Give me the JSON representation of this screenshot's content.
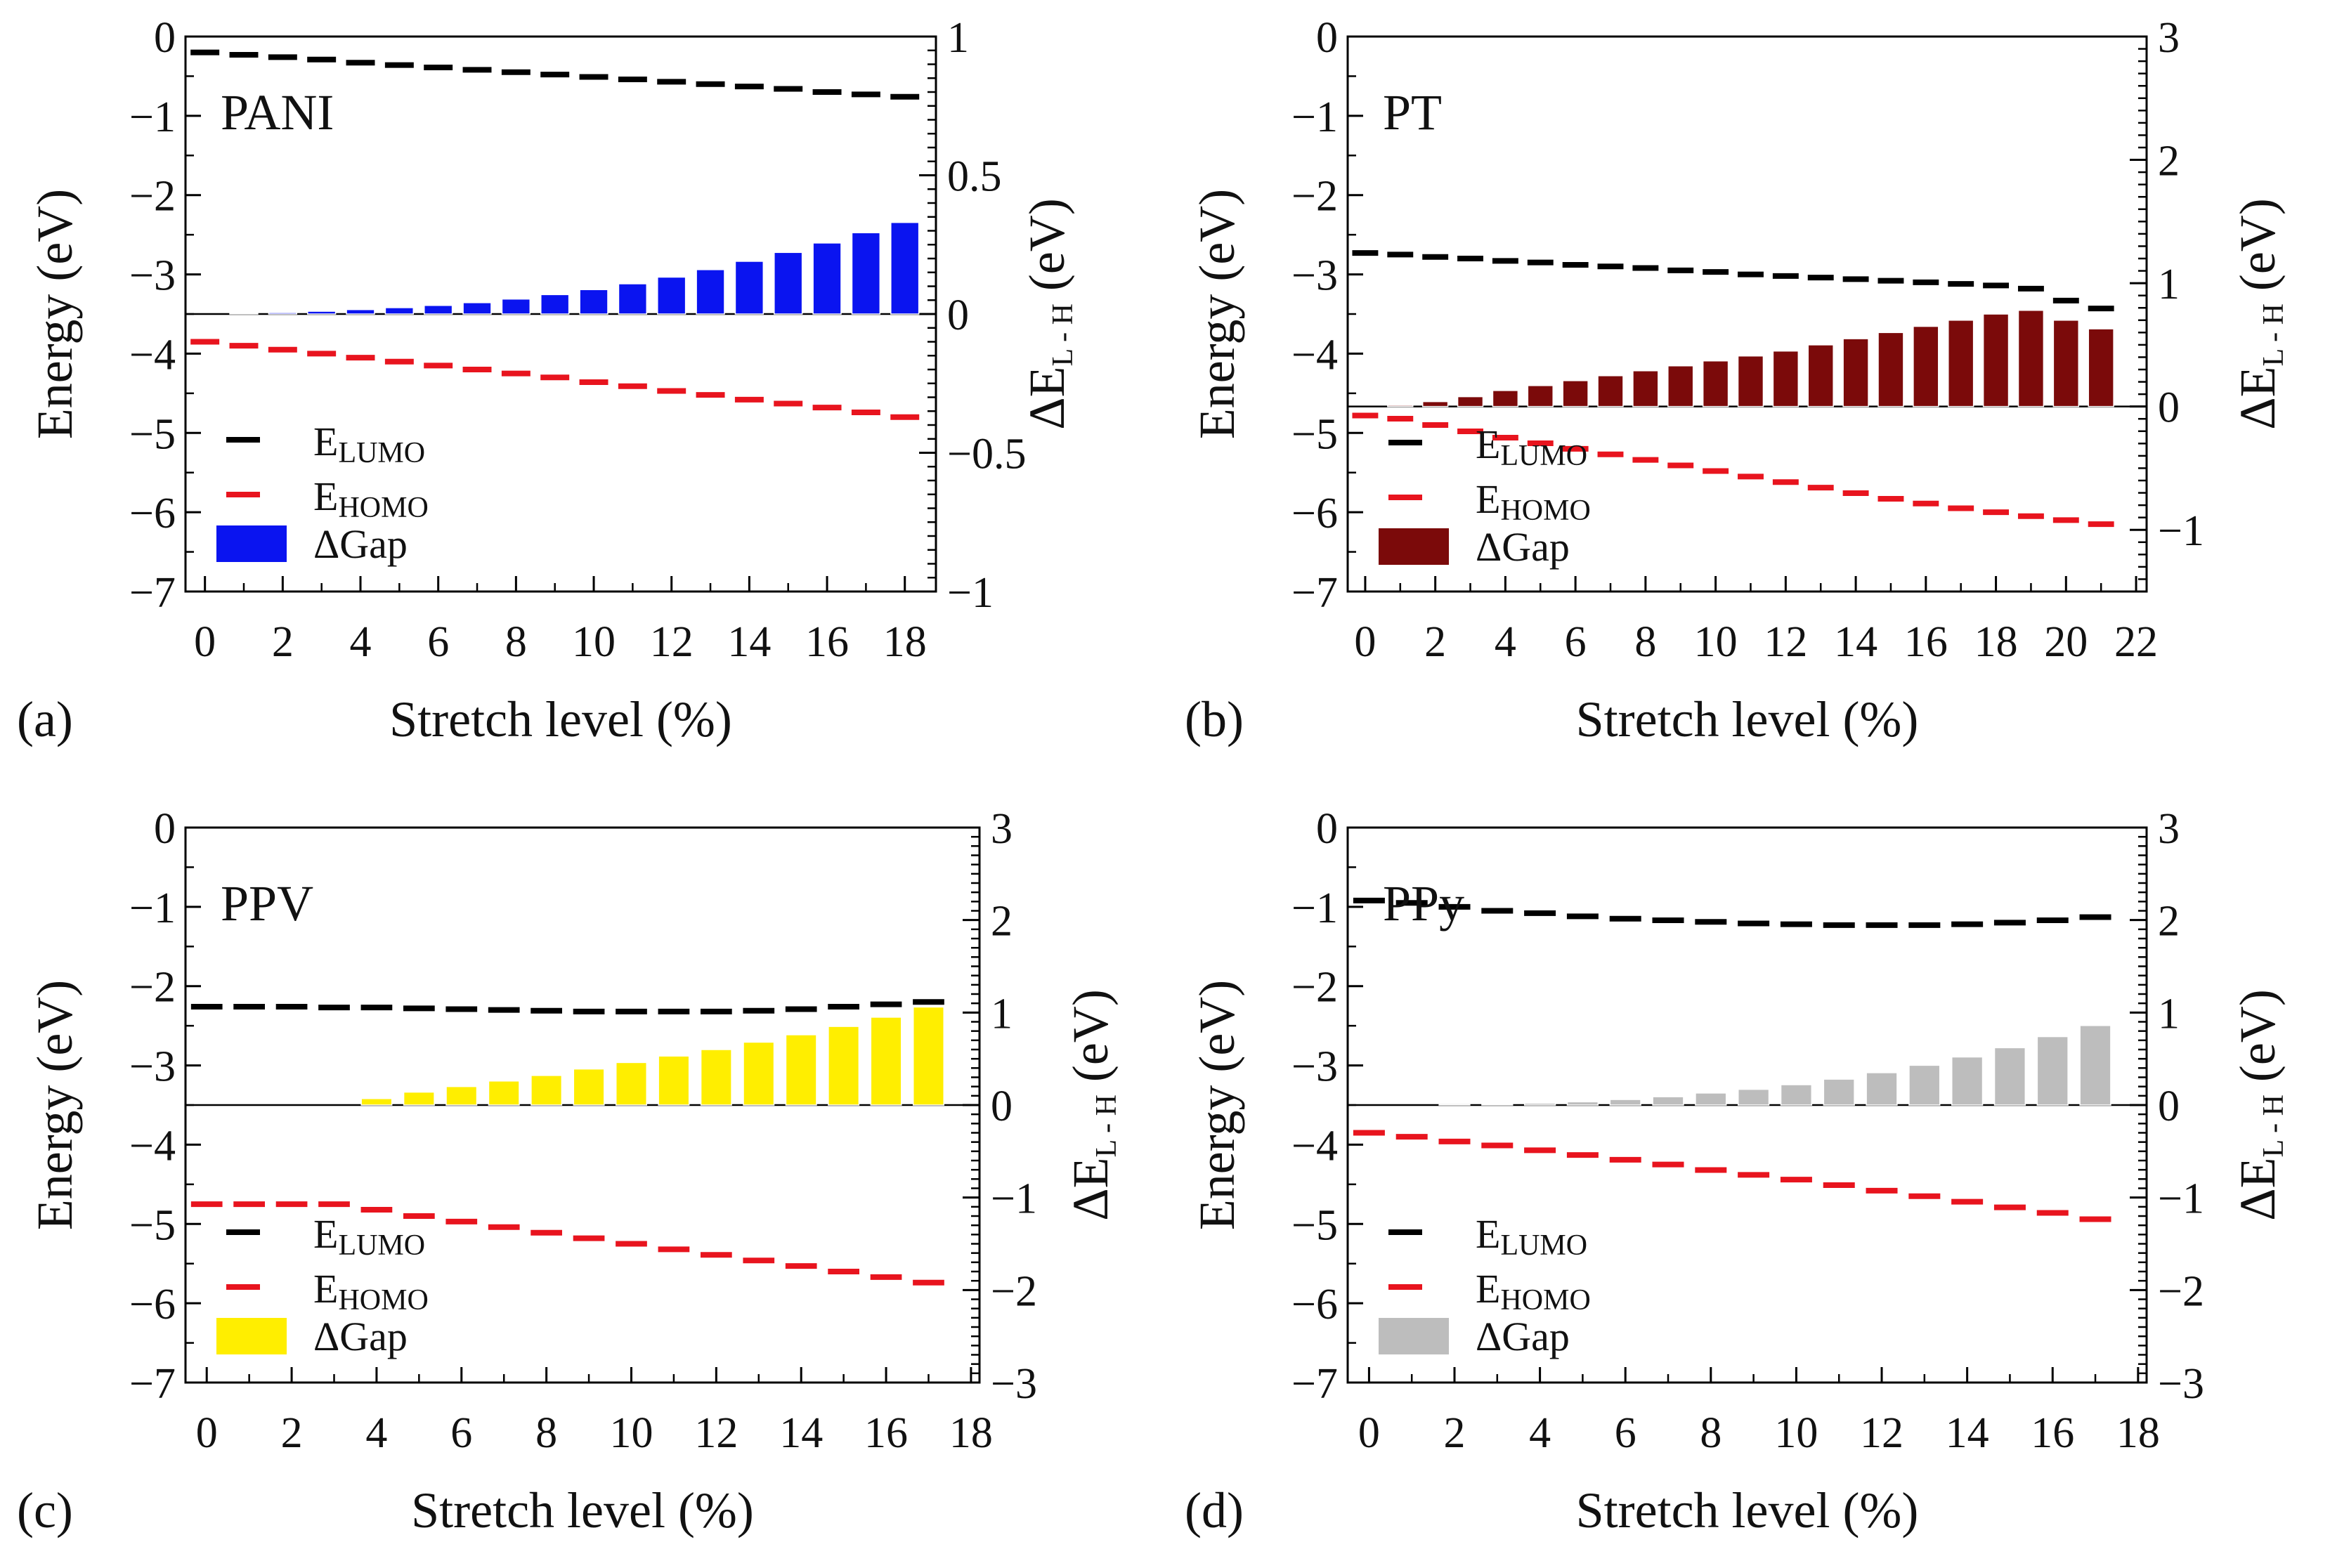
{
  "figure": {
    "legend_labels": {
      "lumo_main": "E",
      "lumo_sub": "LUMO",
      "homo_main": "E",
      "homo_sub": "HOMO",
      "gap": "ΔGap"
    },
    "xlabel": "Stretch level (%)",
    "ylabel_left": "Energy (eV)",
    "ylabel_right_main": "ΔE",
    "ylabel_right_sub": "L - H",
    "ylabel_right_unit": " (eV)"
  },
  "chart_data": [
    {
      "type": "bar",
      "panel": "(a)",
      "title": "PANI",
      "xlabel": "Stretch level (%)",
      "ylabel": "Energy (eV)",
      "y2label": "ΔE L-H (eV)",
      "xlim": [
        -0.5,
        18.8
      ],
      "xticks": [
        0,
        2,
        4,
        6,
        8,
        10,
        12,
        14,
        16,
        18
      ],
      "ylim": [
        -7,
        0
      ],
      "yticks": [
        0,
        -1,
        -2,
        -3,
        -4,
        -5,
        -6,
        -7
      ],
      "y2lim": [
        -1,
        1
      ],
      "y2ticks": [
        1,
        0.5,
        0,
        -0.5,
        -1
      ],
      "y2ticklabels": [
        "1",
        "0.5",
        "0",
        "−0.5",
        "−1"
      ],
      "bar_color": "#0a14f0",
      "x": [
        0,
        1,
        2,
        3,
        4,
        5,
        6,
        7,
        8,
        9,
        10,
        11,
        12,
        13,
        14,
        15,
        16,
        17,
        18
      ],
      "series": [
        {
          "name": "ELUMO",
          "axis": "left",
          "color": "#000000",
          "values": [
            -0.2,
            -0.23,
            -0.26,
            -0.29,
            -0.33,
            -0.36,
            -0.39,
            -0.42,
            -0.45,
            -0.48,
            -0.51,
            -0.54,
            -0.57,
            -0.6,
            -0.63,
            -0.66,
            -0.7,
            -0.73,
            -0.76
          ]
        },
        {
          "name": "EHOMO",
          "axis": "left",
          "color": "#e8141e",
          "values": [
            -3.85,
            -3.9,
            -3.95,
            -4.0,
            -4.05,
            -4.1,
            -4.15,
            -4.2,
            -4.25,
            -4.3,
            -4.36,
            -4.41,
            -4.47,
            -4.52,
            -4.58,
            -4.63,
            -4.68,
            -4.74,
            -4.8
          ]
        },
        {
          "name": "ΔGap",
          "axis": "right",
          "color": "#0a14f0",
          "values": [
            0.0,
            0.002,
            0.005,
            0.01,
            0.016,
            0.023,
            0.031,
            0.041,
            0.054,
            0.07,
            0.088,
            0.109,
            0.133,
            0.16,
            0.19,
            0.222,
            0.256,
            0.293,
            0.33
          ]
        }
      ]
    },
    {
      "type": "bar",
      "panel": "(b)",
      "title": "PT",
      "xlabel": "Stretch level (%)",
      "ylabel": "Energy (eV)",
      "y2label": "ΔE L-H (eV)",
      "xlim": [
        -0.5,
        22.3
      ],
      "xticks": [
        0,
        2,
        4,
        6,
        8,
        10,
        12,
        14,
        16,
        18,
        20,
        22
      ],
      "ylim": [
        -7,
        0
      ],
      "yticks": [
        0,
        -1,
        -2,
        -3,
        -4,
        -5,
        -6,
        -7
      ],
      "y2lim": [
        -1.5,
        3
      ],
      "y2ticks": [
        3,
        2,
        1,
        0,
        -1
      ],
      "y2ticklabels": [
        "3",
        "2",
        "1",
        "0",
        "−1"
      ],
      "bar_color": "#7b0a0a",
      "x": [
        0,
        1,
        2,
        3,
        4,
        5,
        6,
        7,
        8,
        9,
        10,
        11,
        12,
        13,
        14,
        15,
        16,
        17,
        18,
        19,
        20,
        21
      ],
      "series": [
        {
          "name": "ELUMO",
          "axis": "left",
          "color": "#000000",
          "values": [
            -2.73,
            -2.75,
            -2.78,
            -2.8,
            -2.83,
            -2.85,
            -2.88,
            -2.9,
            -2.92,
            -2.95,
            -2.97,
            -3.0,
            -3.02,
            -3.04,
            -3.06,
            -3.08,
            -3.1,
            -3.12,
            -3.14,
            -3.18,
            -3.33,
            -3.43
          ]
        },
        {
          "name": "EHOMO",
          "axis": "left",
          "color": "#e8141e",
          "values": [
            -4.78,
            -4.82,
            -4.9,
            -4.98,
            -5.06,
            -5.13,
            -5.2,
            -5.27,
            -5.34,
            -5.41,
            -5.48,
            -5.55,
            -5.62,
            -5.69,
            -5.76,
            -5.83,
            -5.89,
            -5.95,
            -6.0,
            -6.05,
            -6.1,
            -6.15
          ]
        },
        {
          "name": "ΔGap",
          "axis": "right",
          "color": "#7b0a0a",
          "values": [
            0.0,
            0.01,
            0.04,
            0.08,
            0.13,
            0.17,
            0.21,
            0.25,
            0.29,
            0.33,
            0.37,
            0.41,
            0.45,
            0.5,
            0.55,
            0.6,
            0.65,
            0.7,
            0.75,
            0.78,
            0.7,
            0.63
          ]
        }
      ]
    },
    {
      "type": "bar",
      "panel": "(c)",
      "title": "PPV",
      "xlabel": "Stretch level (%)",
      "ylabel": "Energy (eV)",
      "y2label": "ΔE L-H (eV)",
      "xlim": [
        -0.5,
        18.2
      ],
      "xticks": [
        0,
        2,
        4,
        6,
        8,
        10,
        12,
        14,
        16,
        18
      ],
      "ylim": [
        -7,
        0
      ],
      "yticks": [
        0,
        -1,
        -2,
        -3,
        -4,
        -5,
        -6,
        -7
      ],
      "y2lim": [
        -3,
        3
      ],
      "y2ticks": [
        3,
        2,
        1,
        0,
        -1,
        -2,
        -3
      ],
      "y2ticklabels": [
        "3",
        "2",
        "1",
        "0",
        "−1",
        "−2",
        "−3"
      ],
      "bar_color": "#ffee00",
      "x": [
        0,
        1,
        2,
        3,
        4,
        5,
        6,
        7,
        8,
        9,
        10,
        11,
        12,
        13,
        14,
        15,
        16,
        17
      ],
      "series": [
        {
          "name": "ELUMO",
          "axis": "left",
          "color": "#000000",
          "values": [
            -2.26,
            -2.26,
            -2.26,
            -2.27,
            -2.27,
            -2.28,
            -2.29,
            -2.3,
            -2.31,
            -2.32,
            -2.32,
            -2.32,
            -2.32,
            -2.31,
            -2.29,
            -2.26,
            -2.23,
            -2.2
          ]
        },
        {
          "name": "EHOMO",
          "axis": "left",
          "color": "#e8141e",
          "values": [
            -4.75,
            -4.75,
            -4.75,
            -4.75,
            -4.82,
            -4.9,
            -4.97,
            -5.04,
            -5.11,
            -5.18,
            -5.25,
            -5.32,
            -5.39,
            -5.46,
            -5.53,
            -5.6,
            -5.67,
            -5.74
          ]
        },
        {
          "name": "ΔGap",
          "axis": "right",
          "color": "#ffee00",
          "values": [
            0.0,
            0.0,
            0.0,
            0.0,
            0.07,
            0.14,
            0.2,
            0.26,
            0.32,
            0.39,
            0.46,
            0.53,
            0.6,
            0.68,
            0.76,
            0.85,
            0.95,
            1.06
          ]
        }
      ]
    },
    {
      "type": "bar",
      "panel": "(d)",
      "title": "PPy",
      "xlabel": "Stretch level (%)",
      "ylabel": "Energy (eV)",
      "y2label": "ΔE L-H (eV)",
      "xlim": [
        -0.5,
        18.2
      ],
      "xticks": [
        0,
        2,
        4,
        6,
        8,
        10,
        12,
        14,
        16,
        18
      ],
      "ylim": [
        -7,
        0
      ],
      "yticks": [
        0,
        -1,
        -2,
        -3,
        -4,
        -5,
        -6,
        -7
      ],
      "y2lim": [
        -3,
        3
      ],
      "y2ticks": [
        3,
        2,
        1,
        0,
        -1,
        -2,
        -3
      ],
      "y2ticklabels": [
        "3",
        "2",
        "1",
        "0",
        "−1",
        "−2",
        "−3"
      ],
      "bar_color": "#bdbdbd",
      "x": [
        0,
        1,
        2,
        3,
        4,
        5,
        6,
        7,
        8,
        9,
        10,
        11,
        12,
        13,
        14,
        15,
        16,
        17
      ],
      "series": [
        {
          "name": "ELUMO",
          "axis": "left",
          "color": "#000000",
          "values": [
            -0.92,
            -0.95,
            -1.0,
            -1.05,
            -1.08,
            -1.12,
            -1.15,
            -1.17,
            -1.19,
            -1.21,
            -1.22,
            -1.23,
            -1.23,
            -1.23,
            -1.22,
            -1.2,
            -1.17,
            -1.13
          ]
        },
        {
          "name": "EHOMO",
          "axis": "left",
          "color": "#e8141e",
          "values": [
            -3.85,
            -3.9,
            -3.96,
            -4.01,
            -4.07,
            -4.13,
            -4.19,
            -4.25,
            -4.32,
            -4.38,
            -4.44,
            -4.51,
            -4.58,
            -4.65,
            -4.72,
            -4.79,
            -4.86,
            -4.94
          ]
        },
        {
          "name": "ΔGap",
          "axis": "right",
          "color": "#bdbdbd",
          "values": [
            0.0,
            0.0,
            0.005,
            0.01,
            0.02,
            0.035,
            0.06,
            0.09,
            0.13,
            0.17,
            0.22,
            0.28,
            0.35,
            0.43,
            0.52,
            0.62,
            0.74,
            0.86
          ]
        }
      ]
    }
  ]
}
